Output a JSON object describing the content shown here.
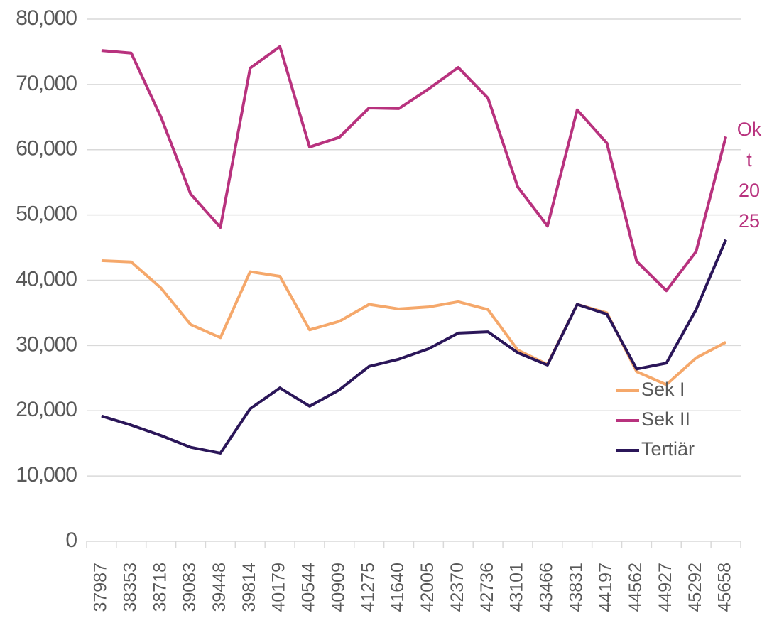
{
  "chart_data": {
    "type": "line",
    "categories": [
      "37987",
      "38353",
      "38718",
      "39083",
      "39448",
      "39814",
      "40179",
      "40544",
      "40909",
      "41275",
      "41640",
      "42005",
      "42370",
      "42736",
      "43101",
      "43466",
      "43831",
      "44197",
      "44562",
      "44927",
      "45292",
      "45658"
    ],
    "series": [
      {
        "name": "Sek I",
        "color": "#f5a86b",
        "values": [
          43000,
          42800,
          38800,
          33200,
          31200,
          41300,
          40600,
          32400,
          33700,
          36300,
          35600,
          35900,
          36700,
          35500,
          29300,
          27100,
          36300,
          35000,
          26000,
          24000,
          28100,
          30500
        ]
      },
      {
        "name": "Sek II",
        "color": "#b8327e",
        "values": [
          75200,
          74800,
          65000,
          53200,
          48100,
          72500,
          75800,
          60400,
          61900,
          66400,
          66300,
          69300,
          72600,
          67900,
          54300,
          48300,
          66100,
          61000,
          42900,
          38400,
          44400,
          62000
        ]
      },
      {
        "name": "Tertiär",
        "color": "#2b1659",
        "values": [
          19200,
          17800,
          16200,
          14400,
          13500,
          20300,
          23500,
          20700,
          23200,
          26800,
          27900,
          29500,
          31900,
          32100,
          28900,
          27000,
          36300,
          34800,
          26400,
          27300,
          35500,
          46200
        ]
      }
    ],
    "annotation": "Okt 2025",
    "ylim": [
      0,
      80000
    ],
    "yticks": [
      0,
      {
        "value": 10000,
        "label": "10,000"
      },
      {
        "value": 20000,
        "label": "20,000"
      },
      {
        "value": 30000,
        "label": "30,000"
      },
      {
        "value": 40000,
        "label": "40,000"
      },
      {
        "value": 50000,
        "label": "50,000"
      },
      {
        "value": 60000,
        "label": "60,000"
      },
      {
        "value": 70000,
        "label": "70,000"
      },
      {
        "value": 80000,
        "label": "80,000"
      }
    ],
    "grid": true
  }
}
